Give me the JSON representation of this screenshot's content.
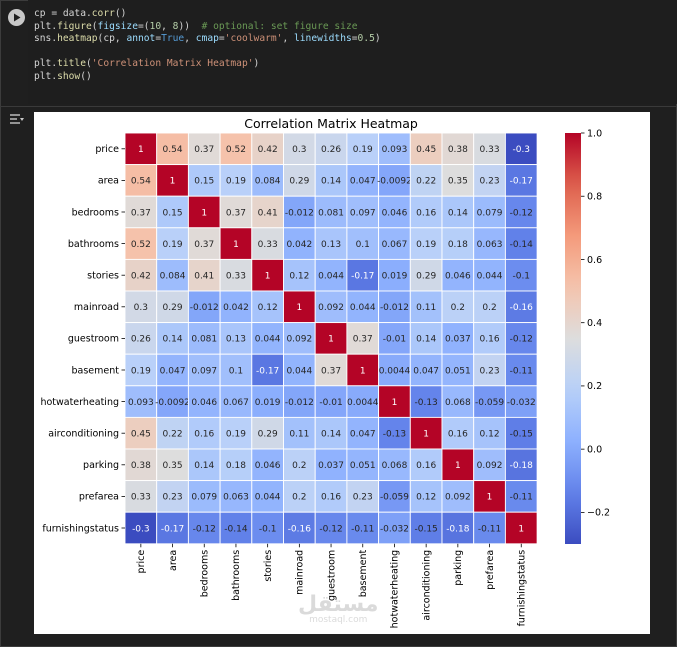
{
  "code": {
    "lines": [
      "cp = data.corr()",
      "plt.figure(figsize=(10, 8))  # optional: set figure size",
      "sns.heatmap(cp, annot=True, cmap='coolwarm', linewidths=0.5)",
      "",
      "plt.title('Correlation Matrix Heatmap')",
      "plt.show()"
    ]
  },
  "watermark": {
    "arabic": "مستقل",
    "latin": "mostaql.com"
  },
  "chart_data": {
    "type": "heatmap",
    "title": "Correlation Matrix Heatmap",
    "colormap": "coolwarm",
    "labels": [
      "price",
      "area",
      "bedrooms",
      "bathrooms",
      "stories",
      "mainroad",
      "guestroom",
      "basement",
      "hotwaterheating",
      "airconditioning",
      "parking",
      "prefarea",
      "furnishingstatus"
    ],
    "annotations": [
      [
        "1",
        "0.54",
        "0.37",
        "0.52",
        "0.42",
        "0.3",
        "0.26",
        "0.19",
        "0.093",
        "0.45",
        "0.38",
        "0.33",
        "-0.3"
      ],
      [
        "0.54",
        "1",
        "0.15",
        "0.19",
        "0.084",
        "0.29",
        "0.14",
        "0.047",
        "-0.0092",
        "0.22",
        "0.35",
        "0.23",
        "-0.17"
      ],
      [
        "0.37",
        "0.15",
        "1",
        "0.37",
        "0.41",
        "-0.012",
        "0.081",
        "0.097",
        "0.046",
        "0.16",
        "0.14",
        "0.079",
        "-0.12"
      ],
      [
        "0.52",
        "0.19",
        "0.37",
        "1",
        "0.33",
        "0.042",
        "0.13",
        "0.1",
        "0.067",
        "0.19",
        "0.18",
        "0.063",
        "-0.14"
      ],
      [
        "0.42",
        "0.084",
        "0.41",
        "0.33",
        "1",
        "0.12",
        "0.044",
        "-0.17",
        "0.019",
        "0.29",
        "0.046",
        "0.044",
        "-0.1"
      ],
      [
        "0.3",
        "0.29",
        "-0.012",
        "0.042",
        "0.12",
        "1",
        "0.092",
        "0.044",
        "-0.012",
        "0.11",
        "0.2",
        "0.2",
        "-0.16"
      ],
      [
        "0.26",
        "0.14",
        "0.081",
        "0.13",
        "0.044",
        "0.092",
        "1",
        "0.37",
        "-0.01",
        "0.14",
        "0.037",
        "0.16",
        "-0.12"
      ],
      [
        "0.19",
        "0.047",
        "0.097",
        "0.1",
        "-0.17",
        "0.044",
        "0.37",
        "1",
        "0.0044",
        "0.047",
        "0.051",
        "0.23",
        "-0.11"
      ],
      [
        "0.093",
        "-0.0092",
        "0.046",
        "0.067",
        "0.019",
        "-0.012",
        "-0.01",
        "0.0044",
        "1",
        "-0.13",
        "0.068",
        "-0.059",
        "-0.032"
      ],
      [
        "0.45",
        "0.22",
        "0.16",
        "0.19",
        "0.29",
        "0.11",
        "0.14",
        "0.047",
        "-0.13",
        "1",
        "0.16",
        "0.12",
        "-0.15"
      ],
      [
        "0.38",
        "0.35",
        "0.14",
        "0.18",
        "0.046",
        "0.2",
        "0.037",
        "0.051",
        "0.068",
        "0.16",
        "1",
        "0.092",
        "-0.18"
      ],
      [
        "0.33",
        "0.23",
        "0.079",
        "0.063",
        "0.044",
        "0.2",
        "0.16",
        "0.23",
        "-0.059",
        "0.12",
        "0.092",
        "1",
        "-0.11"
      ],
      [
        "-0.3",
        "-0.17",
        "-0.12",
        "-0.14",
        "-0.1",
        "-0.16",
        "-0.12",
        "-0.11",
        "-0.032",
        "-0.15",
        "-0.18",
        "-0.11",
        "1"
      ]
    ],
    "colorbar": {
      "range": [
        -0.3,
        1.0
      ],
      "ticks": [
        -0.2,
        0.0,
        0.2,
        0.4,
        0.6,
        0.8,
        1.0
      ],
      "tick_labels": [
        "−0.2",
        "0.0",
        "0.2",
        "0.4",
        "0.6",
        "0.8",
        "1.0"
      ]
    }
  },
  "colors": {
    "cool": "#3b4cc0",
    "neutral": "#dddddd",
    "warm": "#b40426"
  }
}
